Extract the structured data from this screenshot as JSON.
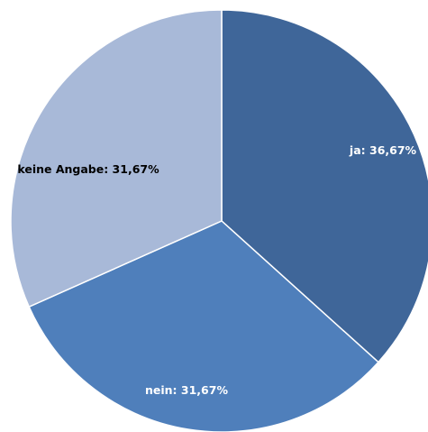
{
  "chart_data": {
    "type": "pie",
    "title": "",
    "legend": "none",
    "slices": [
      {
        "name": "ja",
        "value": 36.67,
        "label": "ja: 36,67%",
        "color": "#3F6699",
        "label_color": "#ffffff"
      },
      {
        "name": "nein",
        "value": 31.67,
        "label": "nein: 31,67%",
        "color": "#4F7FBB",
        "label_color": "#ffffff"
      },
      {
        "name": "keine Angabe",
        "value": 31.67,
        "label": "keine Angabe: 31,67%",
        "color": "#A8B9D8",
        "label_color": "#000000"
      }
    ]
  }
}
